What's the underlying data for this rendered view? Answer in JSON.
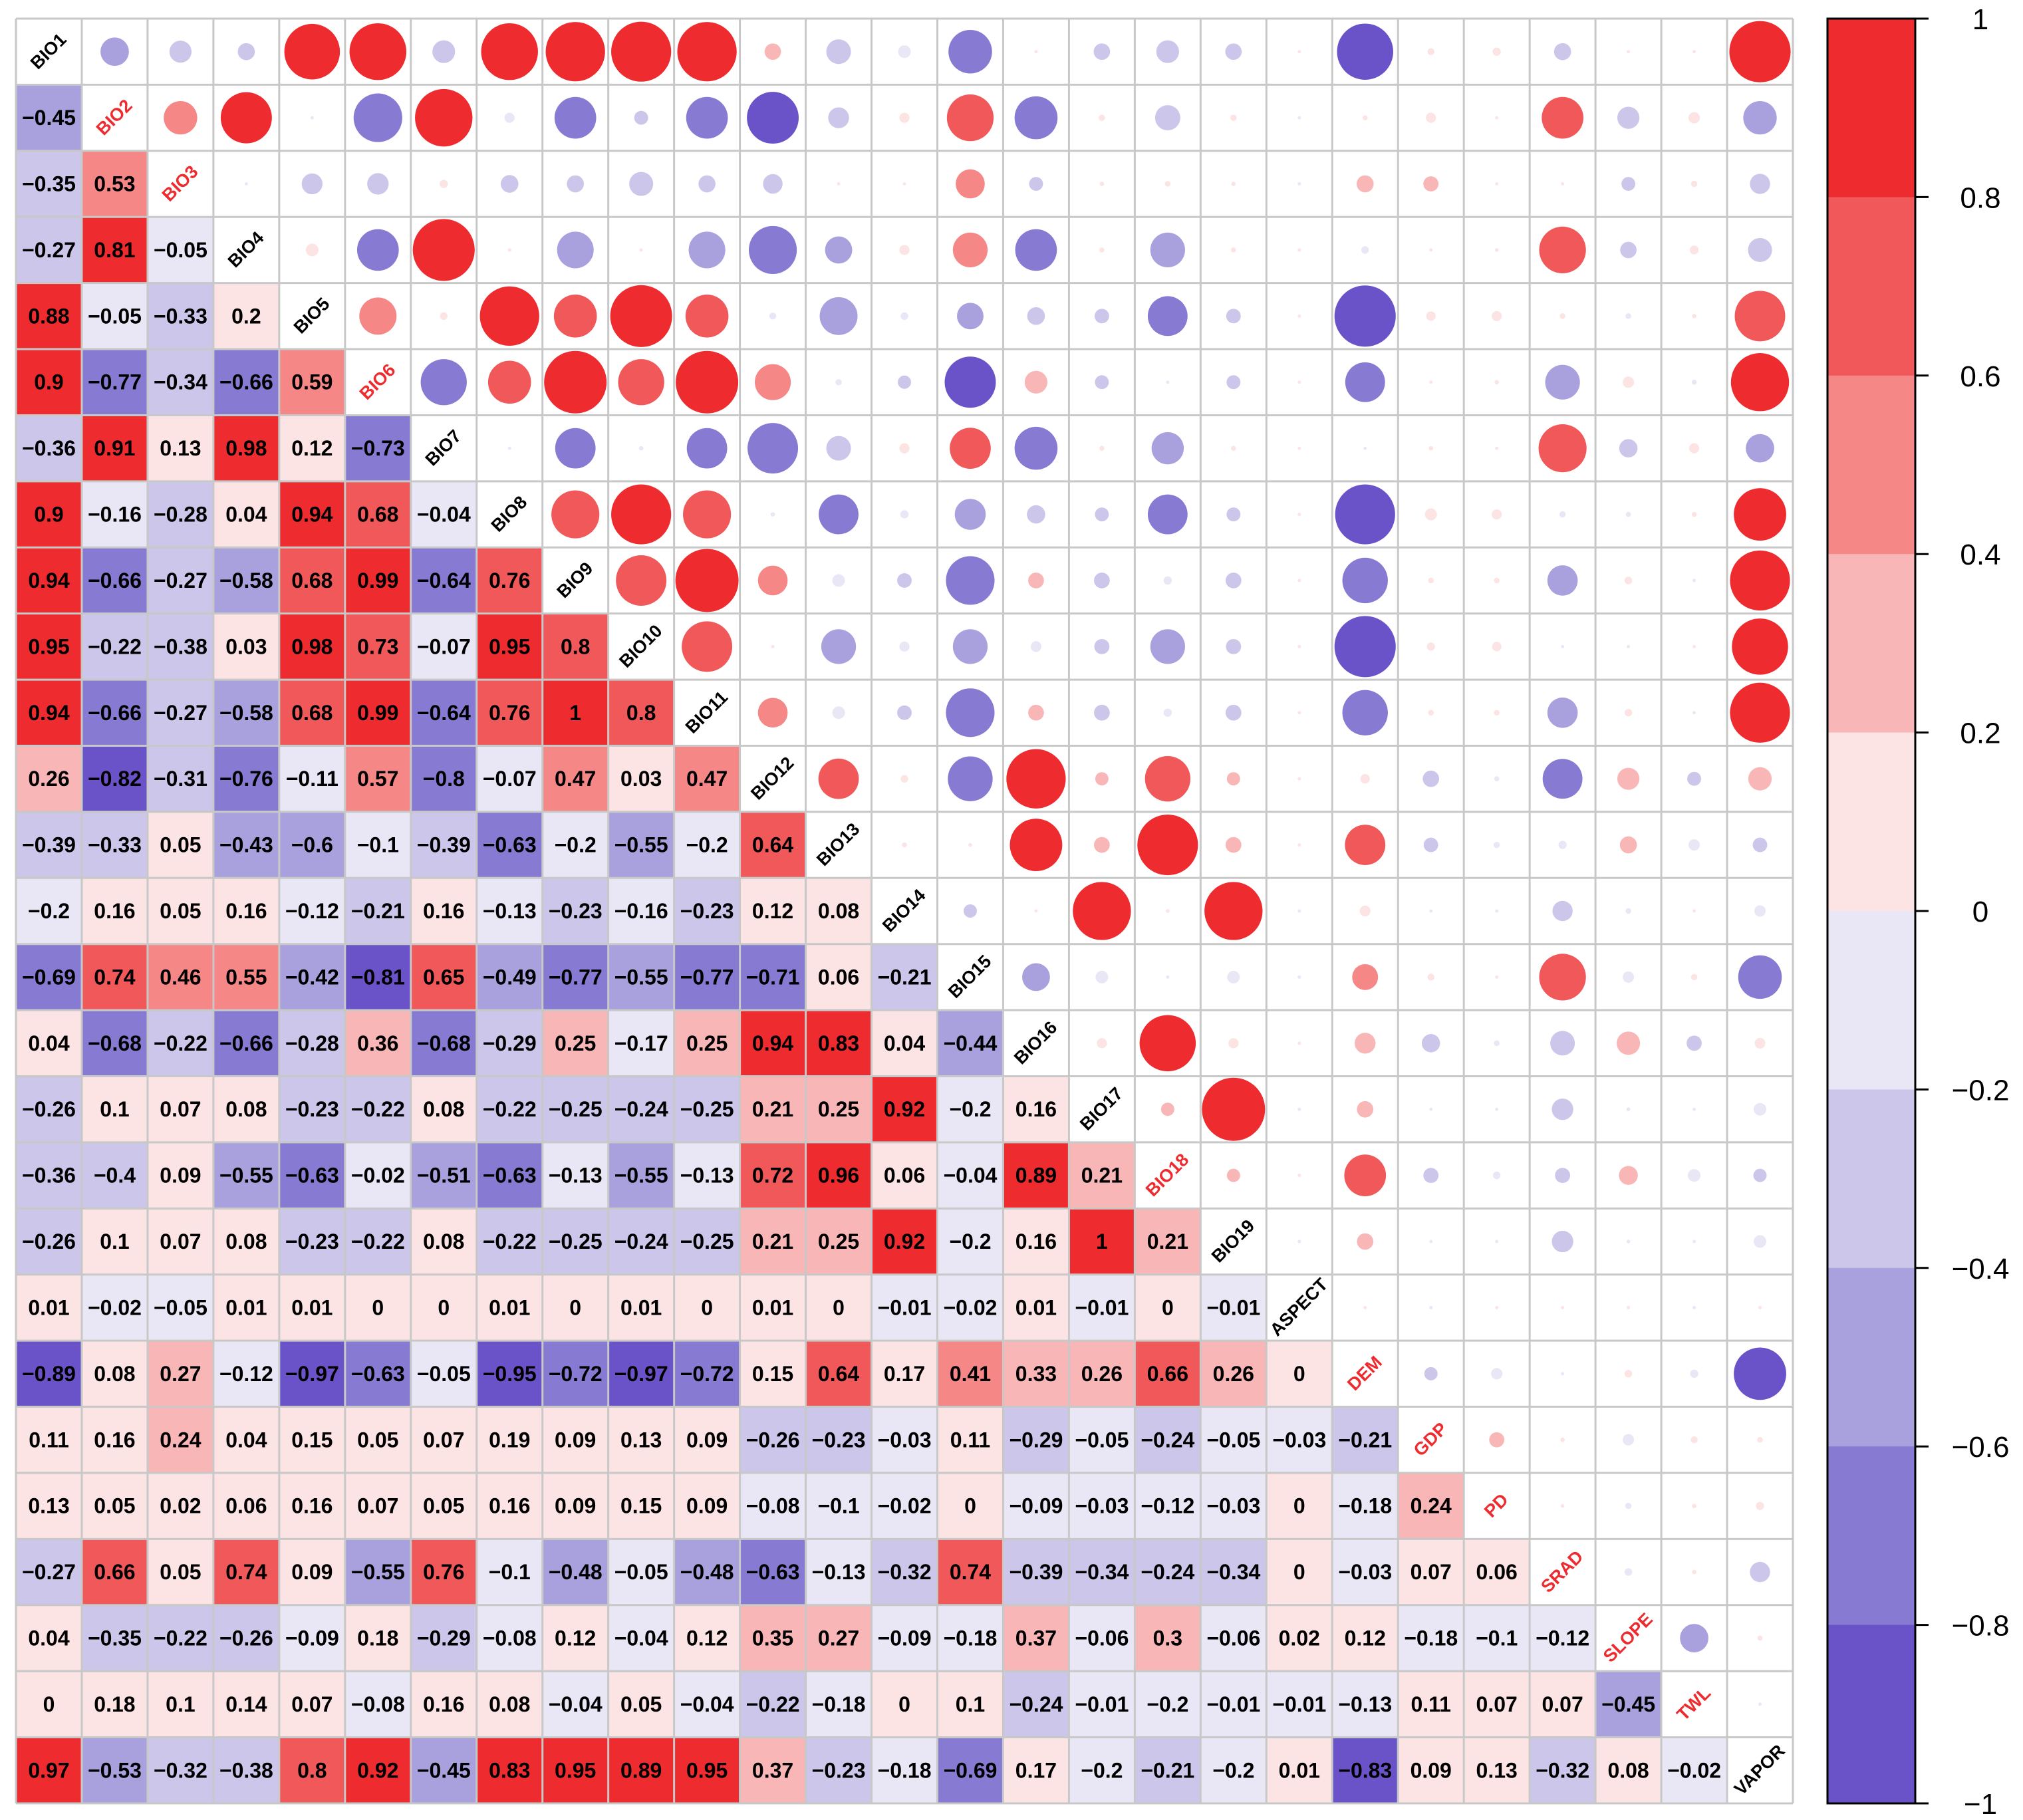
{
  "chart_data": {
    "type": "heatmap",
    "subtype": "correlation-matrix (lower: numbers, upper: circles)",
    "variables": [
      "BIO1",
      "BIO2",
      "BIO3",
      "BIO4",
      "BIO5",
      "BIO6",
      "BIO7",
      "BIO8",
      "BIO9",
      "BIO10",
      "BIO11",
      "BIO12",
      "BIO13",
      "BIO14",
      "BIO15",
      "BIO16",
      "BIO17",
      "BIO18",
      "BIO19",
      "ASPECT",
      "DEM",
      "GDP",
      "PD",
      "SRAD",
      "SLOPE",
      "TWL",
      "VAPOR"
    ],
    "highlighted_variables": [
      "BIO2",
      "BIO3",
      "BIO6",
      "BIO18",
      "DEM",
      "GDP",
      "PD",
      "SRAD",
      "SLOPE",
      "TWL"
    ],
    "lower_triangle": [
      [],
      [
        -0.45
      ],
      [
        -0.35,
        0.53
      ],
      [
        -0.27,
        0.81,
        -0.05
      ],
      [
        0.88,
        -0.05,
        -0.33,
        0.2
      ],
      [
        0.9,
        -0.77,
        -0.34,
        -0.66,
        0.59
      ],
      [
        -0.36,
        0.91,
        0.13,
        0.98,
        0.12,
        -0.73
      ],
      [
        0.9,
        -0.16,
        -0.28,
        0.04,
        0.94,
        0.68,
        -0.04
      ],
      [
        0.94,
        -0.66,
        -0.27,
        -0.58,
        0.68,
        0.99,
        -0.64,
        0.76
      ],
      [
        0.95,
        -0.22,
        -0.38,
        0.03,
        0.98,
        0.73,
        -0.07,
        0.95,
        0.8
      ],
      [
        0.94,
        -0.66,
        -0.27,
        -0.58,
        0.68,
        0.99,
        -0.64,
        0.76,
        1,
        0.8
      ],
      [
        0.26,
        -0.82,
        -0.31,
        -0.76,
        -0.11,
        0.57,
        -0.8,
        -0.07,
        0.47,
        0.03,
        0.47
      ],
      [
        -0.39,
        -0.33,
        0.05,
        -0.43,
        -0.6,
        -0.1,
        -0.39,
        -0.63,
        -0.2,
        -0.55,
        -0.2,
        0.64
      ],
      [
        -0.2,
        0.16,
        0.05,
        0.16,
        -0.12,
        -0.21,
        0.16,
        -0.13,
        -0.23,
        -0.16,
        -0.23,
        0.12,
        0.08
      ],
      [
        -0.69,
        0.74,
        0.46,
        0.55,
        -0.42,
        -0.81,
        0.65,
        -0.49,
        -0.77,
        -0.55,
        -0.77,
        -0.71,
        0.06,
        -0.21
      ],
      [
        0.04,
        -0.68,
        -0.22,
        -0.66,
        -0.28,
        0.36,
        -0.68,
        -0.29,
        0.25,
        -0.17,
        0.25,
        0.94,
        0.83,
        0.04,
        -0.44
      ],
      [
        -0.26,
        0.1,
        0.07,
        0.08,
        -0.23,
        -0.22,
        0.08,
        -0.22,
        -0.25,
        -0.24,
        -0.25,
        0.21,
        0.25,
        0.92,
        -0.2,
        0.16
      ],
      [
        -0.36,
        -0.4,
        0.09,
        -0.55,
        -0.63,
        -0.02,
        -0.51,
        -0.63,
        -0.13,
        -0.55,
        -0.13,
        0.72,
        0.96,
        0.06,
        -0.04,
        0.89,
        0.21
      ],
      [
        -0.26,
        0.1,
        0.07,
        0.08,
        -0.23,
        -0.22,
        0.08,
        -0.22,
        -0.25,
        -0.24,
        -0.25,
        0.21,
        0.25,
        0.92,
        -0.2,
        0.16,
        1,
        0.21
      ],
      [
        0.01,
        -0.02,
        -0.05,
        0.01,
        0.01,
        0,
        0,
        0.01,
        0,
        0.01,
        0,
        0.01,
        0,
        -0.01,
        -0.02,
        0.01,
        -0.01,
        0,
        -0.01
      ],
      [
        -0.89,
        0.08,
        0.27,
        -0.12,
        -0.97,
        -0.63,
        -0.05,
        -0.95,
        -0.72,
        -0.97,
        -0.72,
        0.15,
        0.64,
        0.17,
        0.41,
        0.33,
        0.26,
        0.66,
        0.26,
        0
      ],
      [
        0.11,
        0.16,
        0.24,
        0.04,
        0.15,
        0.05,
        0.07,
        0.19,
        0.09,
        0.13,
        0.09,
        -0.26,
        -0.23,
        -0.03,
        0.11,
        -0.29,
        -0.05,
        -0.24,
        -0.05,
        -0.03,
        -0.21
      ],
      [
        0.13,
        0.05,
        0.02,
        0.06,
        0.16,
        0.07,
        0.05,
        0.16,
        0.09,
        0.15,
        0.09,
        -0.08,
        -0.1,
        -0.02,
        0,
        -0.09,
        -0.03,
        -0.12,
        -0.03,
        0,
        -0.18,
        0.24
      ],
      [
        -0.27,
        0.66,
        0.05,
        0.74,
        0.09,
        -0.55,
        0.76,
        -0.1,
        -0.48,
        -0.05,
        -0.48,
        -0.63,
        -0.13,
        -0.32,
        0.74,
        -0.39,
        -0.34,
        -0.24,
        -0.34,
        0,
        -0.03,
        0.07,
        0.06
      ],
      [
        0.04,
        -0.35,
        -0.22,
        -0.26,
        -0.09,
        0.18,
        -0.29,
        -0.08,
        0.12,
        -0.04,
        0.12,
        0.35,
        0.27,
        -0.09,
        -0.18,
        0.37,
        -0.06,
        0.3,
        -0.06,
        0.02,
        0.12,
        -0.18,
        -0.1,
        -0.12
      ],
      [
        0,
        0.18,
        0.1,
        0.14,
        0.07,
        -0.08,
        0.16,
        0.08,
        -0.04,
        0.05,
        -0.04,
        -0.22,
        -0.18,
        0,
        0.1,
        -0.24,
        -0.01,
        -0.2,
        -0.01,
        -0.01,
        -0.13,
        0.11,
        0.07,
        0.07,
        -0.45
      ],
      [
        0.97,
        -0.53,
        -0.32,
        -0.38,
        0.8,
        0.92,
        -0.45,
        0.83,
        0.95,
        0.89,
        0.95,
        0.37,
        -0.23,
        -0.18,
        -0.69,
        0.17,
        -0.2,
        -0.21,
        -0.2,
        0.01,
        -0.83,
        0.09,
        0.13,
        -0.32,
        0.08,
        -0.02
      ]
    ],
    "colorbar": {
      "range": [
        -1,
        1
      ],
      "ticks": [
        "1",
        "0.8",
        "0.6",
        "0.4",
        "0.2",
        "0",
        "−0.2",
        "−0.4",
        "−0.6",
        "−0.8",
        "−1"
      ],
      "position": "right"
    }
  },
  "colors": {
    "strong_pos": "#ee2b2f",
    "pos_80": "#f15859",
    "pos_60": "#f58787",
    "pos_40": "#f8b7b6",
    "pos_20": "#fbe4e3",
    "neg_20": "#e9e7f6",
    "neg_40": "#cbc6ea",
    "neg_60": "#a9a1de",
    "neg_80": "#877ad2",
    "strong_neg": "#6a53c8",
    "grid": "#c8c8c8",
    "label_default": "#000000",
    "label_highlight": "#ee2b2f"
  }
}
